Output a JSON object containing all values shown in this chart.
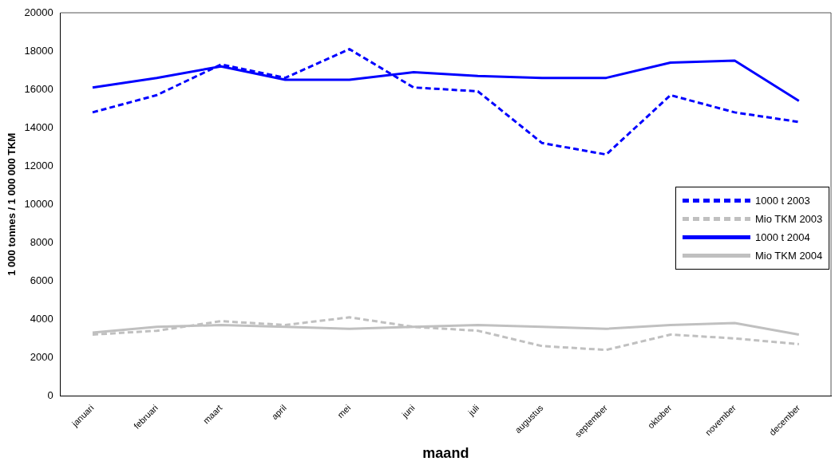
{
  "chart_data": {
    "type": "line",
    "xlabel": "maand",
    "ylabel": "1 000 tonnes / 1 000 000 TKM",
    "categories": [
      "januari",
      "februari",
      "maart",
      "april",
      "mei",
      "juni",
      "juli",
      "augustus",
      "september",
      "oktober",
      "november",
      "december"
    ],
    "series": [
      {
        "name": "1000 t 2003",
        "color": "#0000ff",
        "line_style": "dashed",
        "values": [
          14800,
          15700,
          17300,
          16600,
          18100,
          16100,
          15900,
          13200,
          12600,
          15700,
          14800,
          14300
        ]
      },
      {
        "name": "Mio TKM 2003",
        "color": "#c0c0c0",
        "line_style": "dashed",
        "values": [
          3200,
          3400,
          3900,
          3700,
          4100,
          3600,
          3400,
          2600,
          2400,
          3200,
          3000,
          2700
        ]
      },
      {
        "name": "1000 t 2004",
        "color": "#0000ff",
        "line_style": "solid",
        "values": [
          16100,
          16600,
          17200,
          16500,
          16500,
          16900,
          16700,
          16600,
          16600,
          17400,
          17500,
          15400
        ]
      },
      {
        "name": "Mio TKM 2004",
        "color": "#c0c0c0",
        "line_style": "solid",
        "values": [
          3300,
          3600,
          3700,
          3600,
          3500,
          3600,
          3700,
          3600,
          3500,
          3700,
          3800,
          3200
        ]
      }
    ],
    "ylim": [
      0,
      20000
    ],
    "yticks": [
      0,
      2000,
      4000,
      6000,
      8000,
      10000,
      12000,
      14000,
      16000,
      18000,
      20000
    ],
    "grid": false,
    "legend": "right",
    "marker": "none"
  }
}
